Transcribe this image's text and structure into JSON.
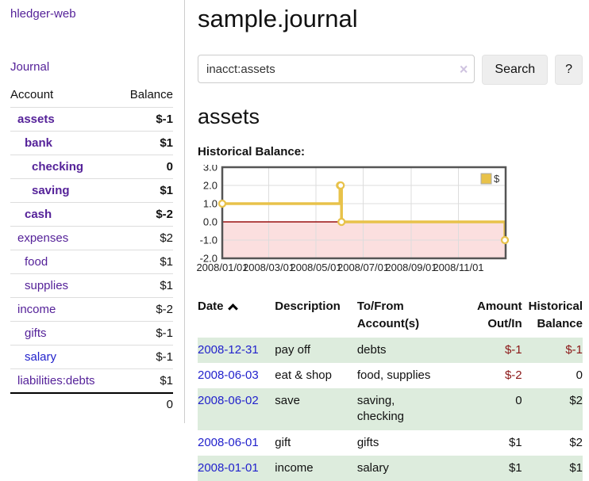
{
  "sidebar": {
    "brand": "hledger-web",
    "nav": {
      "journal": "Journal"
    },
    "headers": {
      "account": "Account",
      "balance": "Balance"
    },
    "accounts": [
      {
        "name": "assets",
        "balance": "$-1"
      },
      {
        "name": "bank",
        "balance": "$1"
      },
      {
        "name": "checking",
        "balance": "0"
      },
      {
        "name": "saving",
        "balance": "$1"
      },
      {
        "name": "cash",
        "balance": "$-2"
      },
      {
        "name": "expenses",
        "balance": "$2"
      },
      {
        "name": "food",
        "balance": "$1"
      },
      {
        "name": "supplies",
        "balance": "$1"
      },
      {
        "name": "income",
        "balance": "$-2"
      },
      {
        "name": "gifts",
        "balance": "$-1"
      },
      {
        "name": "salary",
        "balance": "$-1"
      },
      {
        "name": "liabilities:debts",
        "balance": "$1"
      }
    ],
    "total": "0"
  },
  "header": {
    "title": "sample.journal"
  },
  "search": {
    "query": "inacct:assets",
    "clear_icon": "×",
    "button_label": "Search",
    "help_label": "?"
  },
  "account_page": {
    "heading": "assets",
    "chart_label": "Historical Balance:"
  },
  "chart_data": {
    "type": "line",
    "step": true,
    "grid": true,
    "title": "Historical Balance:",
    "legend": "$",
    "legend_position": "top-right",
    "x_range": [
      "2008-01-01",
      "2009-01-01"
    ],
    "x_ticks": [
      "2008/01/01",
      "2008/03/01",
      "2008/05/01",
      "2008/07/01",
      "2008/09/01",
      "2008/11/01"
    ],
    "y_ticks": [
      "3.0",
      "2.0",
      "1.0",
      "0.0",
      "-1.0",
      "-2.0"
    ],
    "ylim": [
      -2,
      3
    ],
    "series": [
      {
        "name": "$",
        "color": "#e8c24a",
        "points": [
          {
            "date": "2008-01-01",
            "value": 1
          },
          {
            "date": "2008-06-01",
            "value": 2
          },
          {
            "date": "2008-06-02",
            "value": 2
          },
          {
            "date": "2008-06-03",
            "value": 0
          },
          {
            "date": "2008-12-31",
            "value": -1
          }
        ]
      }
    ],
    "negative_region_color": "#fbdfdf",
    "zero_line_color": "#991111",
    "grid_color": "#ddd",
    "border_color": "#555"
  },
  "register": {
    "headers": {
      "date": "Date",
      "description": "Description",
      "tofrom": "To/From Account(s)",
      "amount": "Amount Out/In",
      "balance": "Historical Balance"
    },
    "rows": [
      {
        "date": "2008-12-31",
        "description": "pay off",
        "accounts": "debts",
        "amount": "$-1",
        "balance": "$-1"
      },
      {
        "date": "2008-06-03",
        "description": "eat & shop",
        "accounts": "food, supplies",
        "amount": "$-2",
        "balance": "0"
      },
      {
        "date": "2008-06-02",
        "description": "save",
        "accounts": "saving,\nchecking",
        "amount": "0",
        "balance": "$2"
      },
      {
        "date": "2008-06-01",
        "description": "gift",
        "accounts": "gifts",
        "amount": "$1",
        "balance": "$2"
      },
      {
        "date": "2008-01-01",
        "description": "income",
        "accounts": "salary",
        "amount": "$1",
        "balance": "$1"
      }
    ]
  },
  "colors": {
    "link_purple": "#552299",
    "link_blue": "#2222cc",
    "negative_strong": "#8b1717",
    "negative_soft": "#bb7a7a",
    "row_green": "#ddecdd",
    "chart_line": "#e8c24a"
  }
}
